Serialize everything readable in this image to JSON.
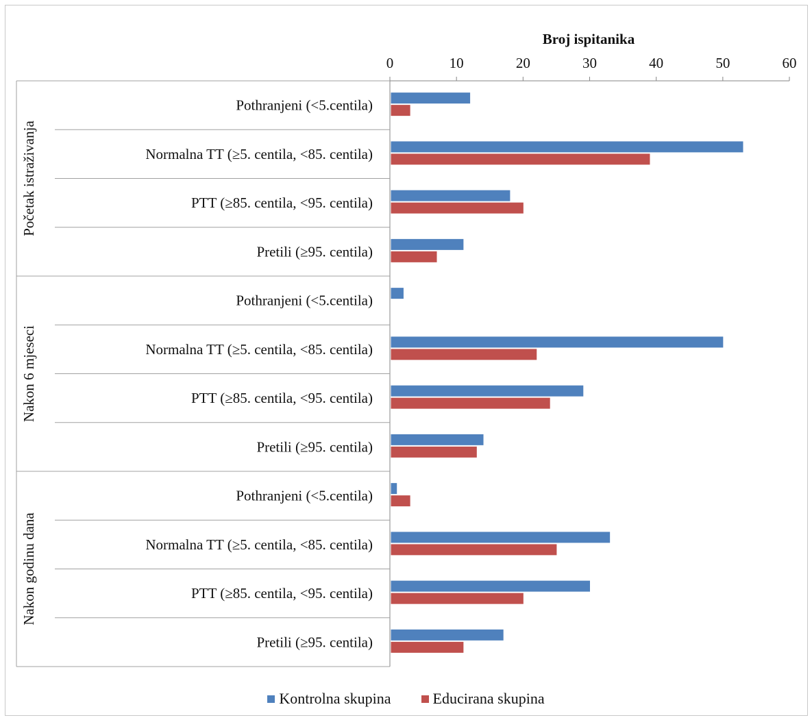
{
  "chart_data": {
    "type": "bar",
    "orientation": "horizontal",
    "title": "Broj ispitanika",
    "xlim": [
      0,
      60
    ],
    "x_ticks": [
      0,
      10,
      20,
      30,
      40,
      50,
      60
    ],
    "axis_position": "top",
    "grid": false,
    "legend_position": "bottom",
    "groups": [
      {
        "label": "Početak istraživanja",
        "categories": [
          "Pothranjeni (<5.centila)",
          "Normalna TT (≥5. centila, <85. centila)",
          "PTT (≥85. centila, <95. centila)",
          "Pretili (≥95. centila)"
        ]
      },
      {
        "label": "Nakon 6 mjeseci",
        "categories": [
          "Pothranjeni (<5.centila)",
          "Normalna TT (≥5. centila, <85. centila)",
          "PTT (≥85. centila, <95. centila)",
          "Pretili (≥95. centila)"
        ]
      },
      {
        "label": "Nakon godinu dana",
        "categories": [
          "Pothranjeni (<5.centila)",
          "Normalna TT (≥5. centila, <85. centila)",
          "PTT (≥85. centila, <95. centila)",
          "Pretili (≥95. centila)"
        ]
      }
    ],
    "series": [
      {
        "name": "Kontrolna skupina",
        "color": "#4f81bd",
        "values": [
          12,
          53,
          18,
          11,
          2,
          50,
          29,
          14,
          1,
          33,
          30,
          17
        ]
      },
      {
        "name": "Educirana skupina",
        "color": "#c0504d",
        "values": [
          3,
          39,
          20,
          7,
          0,
          22,
          24,
          13,
          3,
          25,
          20,
          11
        ]
      }
    ]
  }
}
